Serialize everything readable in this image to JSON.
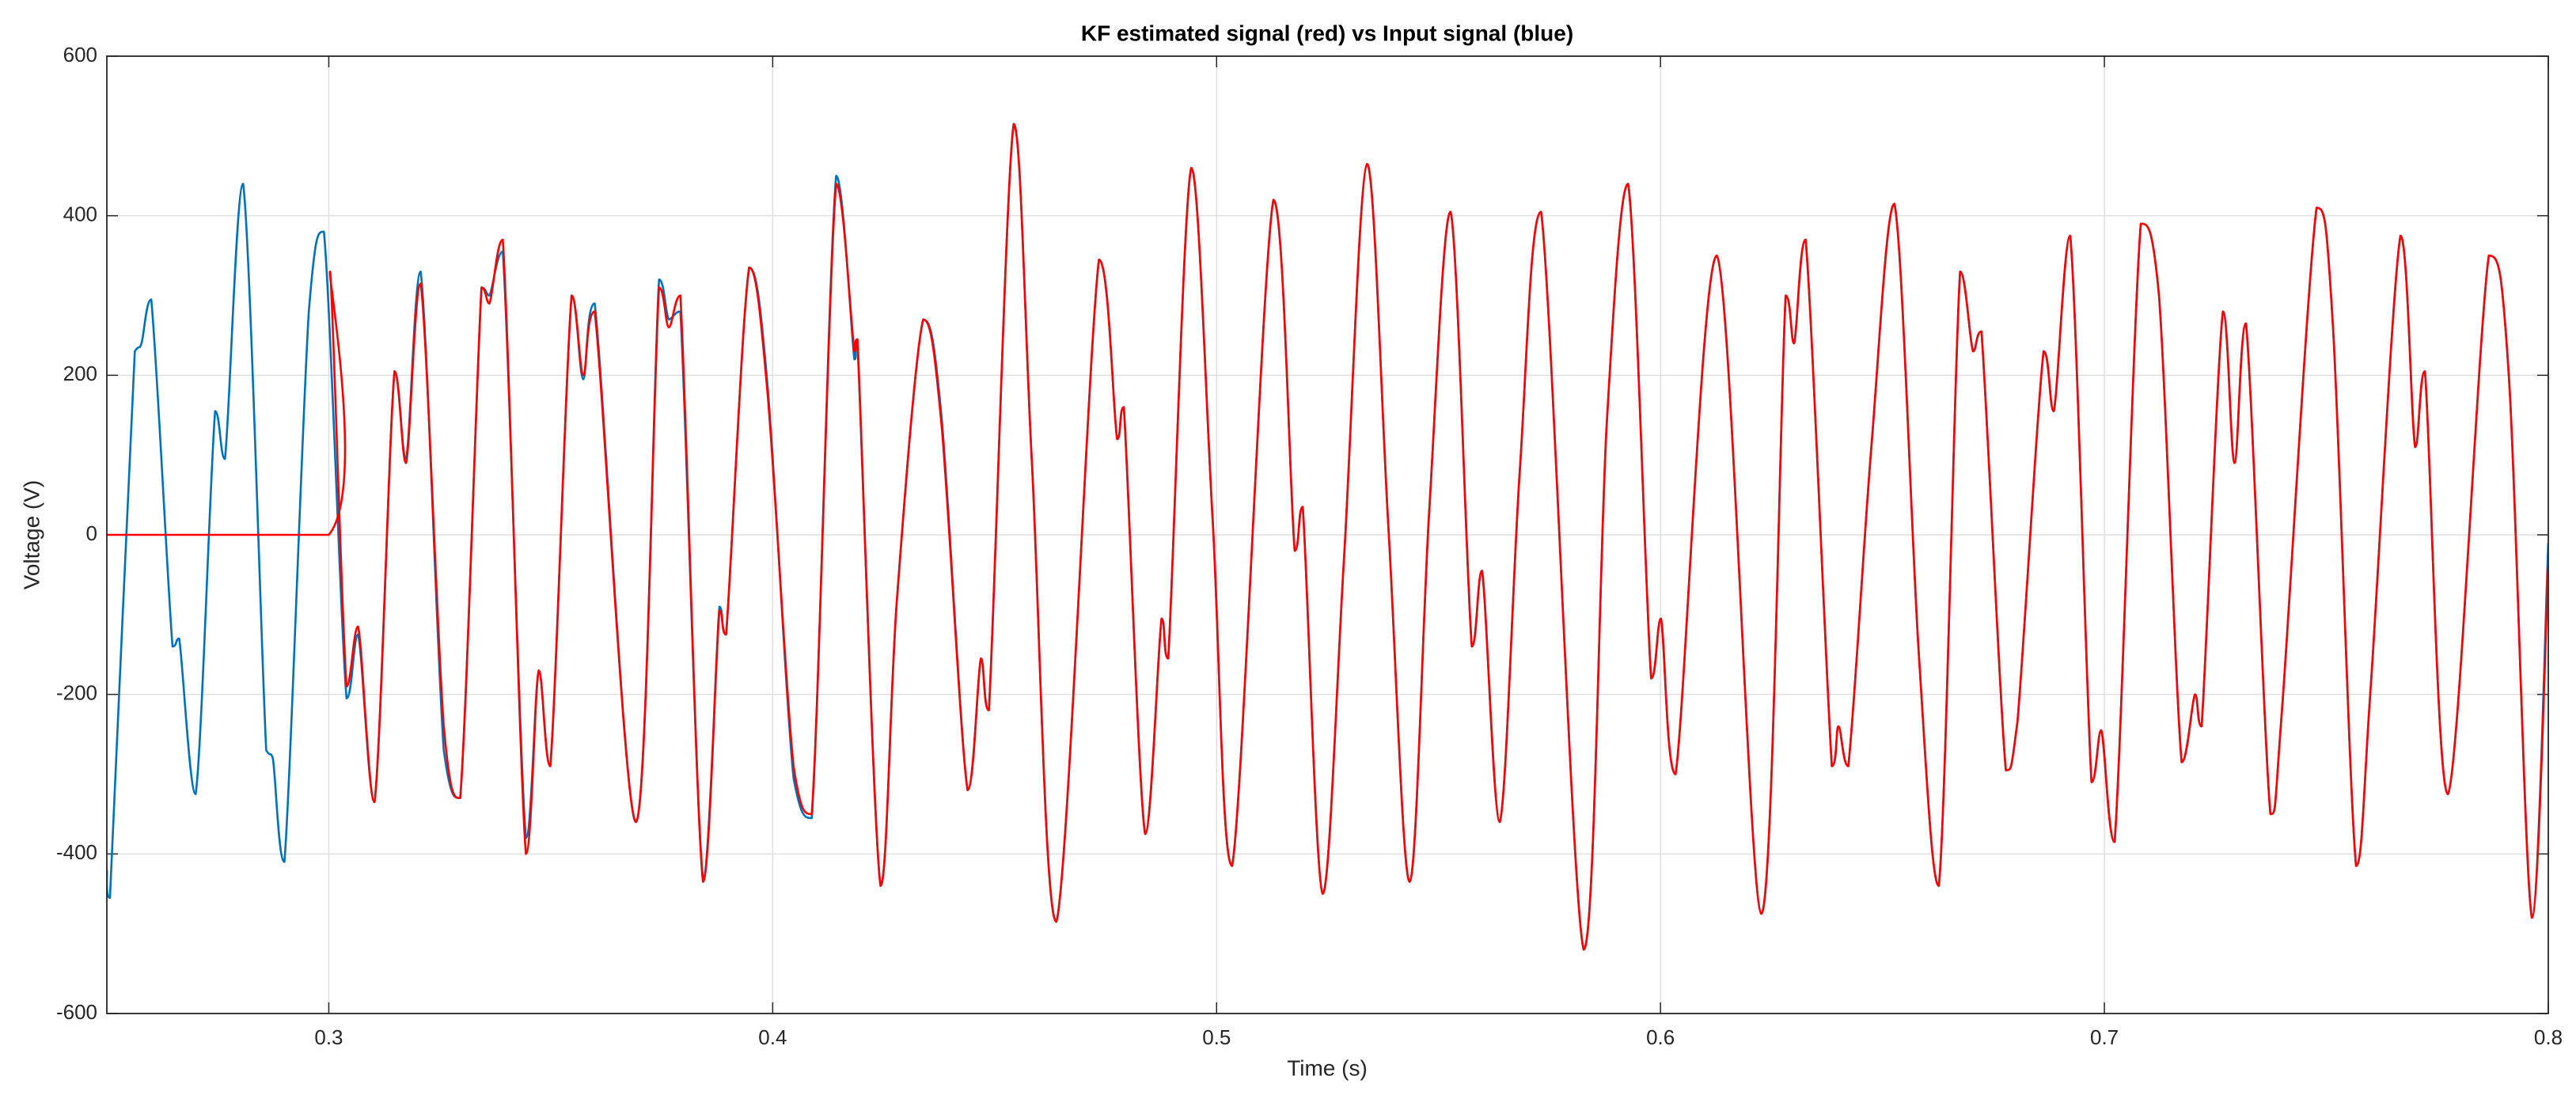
{
  "chart_data": {
    "type": "line",
    "title": "KF estimated signal (red) vs Input signal (blue)",
    "xlabel": "Time (s)",
    "ylabel": "Voltage (V)",
    "xlim": [
      0.25,
      0.8
    ],
    "xticks": [
      0.3,
      0.4,
      0.5,
      0.6,
      0.7,
      0.8
    ],
    "ylim": [
      -600,
      600
    ],
    "yticks": [
      -600,
      -400,
      -200,
      0,
      200,
      400,
      600
    ],
    "grid": true,
    "series": [
      {
        "color": "#0072bd",
        "x": [
          0.25,
          0.2507,
          0.2563,
          0.2578,
          0.26,
          0.2648,
          0.2663,
          0.27,
          0.2744,
          0.2766,
          0.2807,
          0.2859,
          0.2874,
          0.29,
          0.2955,
          0.2989,
          0.304,
          0.3066,
          0.3103,
          0.3148,
          0.3174,
          0.3207,
          0.3259,
          0.3296,
          0.3344,
          0.3362,
          0.3392,
          0.3444,
          0.3473,
          0.3499,
          0.3547,
          0.3573,
          0.3599,
          0.3692,
          0.3744,
          0.3766,
          0.3792,
          0.3843,
          0.388,
          0.3895,
          0.3947,
          0.3988,
          0.4047,
          0.4088,
          0.4143,
          0.4184,
          0.4191,
          0.4243,
          0.428,
          0.4339,
          0.438,
          0.4439,
          0.4469,
          0.4487,
          0.4543,
          0.4584,
          0.4639,
          0.4735,
          0.4776,
          0.4791,
          0.4839,
          0.4876,
          0.4891,
          0.4943,
          0.4991,
          0.5035,
          0.5128,
          0.5176,
          0.5194,
          0.5239,
          0.5287,
          0.5339,
          0.5387,
          0.5435,
          0.5479,
          0.5527,
          0.5575,
          0.5598,
          0.5638,
          0.5683,
          0.5731,
          0.5827,
          0.5879,
          0.5927,
          0.5979,
          0.6001,
          0.6034,
          0.6127,
          0.6227,
          0.6282,
          0.6301,
          0.6327,
          0.6386,
          0.6401,
          0.6423,
          0.6475,
          0.6527,
          0.6582,
          0.6627,
          0.6675,
          0.6704,
          0.6723,
          0.6778,
          0.6804,
          0.6863,
          0.6886,
          0.6923,
          0.6971,
          0.6993,
          0.7023,
          0.7082,
          0.7123,
          0.7174,
          0.7204,
          0.7219,
          0.7267,
          0.7293,
          0.7319,
          0.7374,
          0.74,
          0.7478,
          0.7515,
          0.7567,
          0.76,
          0.7667,
          0.77,
          0.7722,
          0.7774,
          0.7866,
          0.7911,
          0.7963,
          0.8
        ],
        "values": [
          -420,
          -455,
          230,
          240,
          295,
          -140,
          -130,
          -325,
          155,
          95,
          440,
          -270,
          -280,
          -410,
          280,
          380,
          -205,
          -125,
          -335,
          205,
          95,
          330,
          -270,
          -330,
          310,
          300,
          355,
          -380,
          -170,
          -290,
          300,
          195,
          290,
          -360,
          320,
          270,
          280,
          -430,
          -90,
          -125,
          335,
          190,
          -305,
          -355,
          450,
          220,
          240,
          -440,
          -80,
          270,
          150,
          -320,
          -155,
          -220,
          515,
          90,
          -485,
          345,
          120,
          160,
          -375,
          -105,
          -155,
          460,
          20,
          -415,
          420,
          -20,
          35,
          -450,
          -30,
          465,
          10,
          -435,
          30,
          405,
          -140,
          -45,
          -360,
          80,
          405,
          -520,
          140,
          440,
          -180,
          -105,
          -300,
          350,
          -475,
          300,
          240,
          370,
          -290,
          -240,
          -290,
          110,
          415,
          -150,
          -440,
          330,
          230,
          255,
          -295,
          -235,
          230,
          155,
          375,
          -310,
          -245,
          -385,
          390,
          300,
          -285,
          -200,
          -240,
          280,
          90,
          265,
          -350,
          -220,
          410,
          260,
          -415,
          -190,
          375,
          110,
          205,
          -325,
          350,
          200,
          -480,
          -10
        ]
      },
      {
        "color": "#ff0000",
        "x": [
          0.25,
          0.3,
          0.3003,
          0.304,
          0.3066,
          0.3103,
          0.3148,
          0.3174,
          0.3207,
          0.3259,
          0.3296,
          0.3344,
          0.3362,
          0.3392,
          0.3444,
          0.3473,
          0.3499,
          0.3547,
          0.3573,
          0.3599,
          0.3692,
          0.3744,
          0.3766,
          0.3792,
          0.3843,
          0.388,
          0.3895,
          0.3947,
          0.3988,
          0.4047,
          0.4088,
          0.4143,
          0.4184,
          0.4191,
          0.4243,
          0.428,
          0.4339,
          0.438,
          0.4439,
          0.4469,
          0.4487,
          0.4543,
          0.4584,
          0.4639,
          0.4735,
          0.4776,
          0.4791,
          0.4839,
          0.4876,
          0.4891,
          0.4943,
          0.4991,
          0.5035,
          0.5128,
          0.5176,
          0.5194,
          0.5239,
          0.5287,
          0.5339,
          0.5387,
          0.5435,
          0.5479,
          0.5527,
          0.5575,
          0.5598,
          0.5638,
          0.5683,
          0.5731,
          0.5827,
          0.5879,
          0.5927,
          0.5979,
          0.6001,
          0.6034,
          0.6127,
          0.6227,
          0.6282,
          0.6301,
          0.6327,
          0.6386,
          0.6401,
          0.6423,
          0.6475,
          0.6527,
          0.6582,
          0.6627,
          0.6675,
          0.6704,
          0.6723,
          0.6778,
          0.6804,
          0.6863,
          0.6886,
          0.6923,
          0.6971,
          0.6993,
          0.7023,
          0.7082,
          0.7123,
          0.7174,
          0.7204,
          0.7219,
          0.7267,
          0.7293,
          0.7319,
          0.7374,
          0.74,
          0.7478,
          0.7515,
          0.7567,
          0.76,
          0.7667,
          0.77,
          0.7722,
          0.7774,
          0.7866,
          0.7911,
          0.7963,
          0.8
        ],
        "values": [
          0,
          0,
          330,
          -190,
          -115,
          -335,
          205,
          90,
          315,
          -240,
          -330,
          310,
          290,
          370,
          -400,
          -170,
          -290,
          300,
          200,
          280,
          -360,
          310,
          260,
          300,
          -435,
          -95,
          -125,
          335,
          180,
          -290,
          -350,
          440,
          230,
          245,
          -440,
          -80,
          270,
          140,
          -320,
          -155,
          -220,
          515,
          90,
          -485,
          345,
          120,
          160,
          -375,
          -105,
          -155,
          460,
          20,
          -415,
          420,
          -20,
          35,
          -450,
          -30,
          465,
          10,
          -435,
          30,
          405,
          -140,
          -45,
          -360,
          80,
          405,
          -520,
          140,
          440,
          -180,
          -105,
          -300,
          350,
          -475,
          300,
          240,
          370,
          -290,
          -240,
          -290,
          110,
          415,
          -150,
          -440,
          330,
          230,
          255,
          -295,
          -235,
          230,
          155,
          375,
          -310,
          -245,
          -385,
          390,
          300,
          -285,
          -200,
          -240,
          280,
          90,
          265,
          -350,
          -220,
          410,
          260,
          -415,
          -190,
          375,
          110,
          205,
          -325,
          350,
          200,
          -480,
          -40
        ]
      }
    ]
  }
}
